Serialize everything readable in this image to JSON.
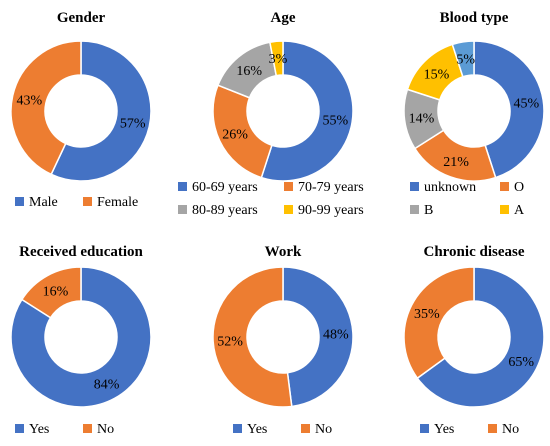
{
  "chart_data": [
    {
      "type": "pie",
      "title": "Gender",
      "donut": true,
      "series": [
        {
          "name": "Male",
          "value": 57,
          "label": "57%",
          "color": "#4472C4"
        },
        {
          "name": "Female",
          "value": 43,
          "label": "43%",
          "color": "#ED7D31"
        }
      ]
    },
    {
      "type": "pie",
      "title": "Age",
      "donut": true,
      "series": [
        {
          "name": "60-69 years",
          "value": 55,
          "label": "55%",
          "color": "#4472C4"
        },
        {
          "name": "70-79 years",
          "value": 26,
          "label": "26%",
          "color": "#ED7D31"
        },
        {
          "name": "80-89 years",
          "value": 16,
          "label": "16%",
          "color": "#A5A5A5"
        },
        {
          "name": "90-99 years",
          "value": 3,
          "label": "3%",
          "color": "#FFC000"
        }
      ]
    },
    {
      "type": "pie",
      "title": "Blood type",
      "donut": true,
      "series": [
        {
          "name": "unknown",
          "value": 45,
          "label": "45%",
          "color": "#4472C4"
        },
        {
          "name": "O",
          "value": 21,
          "label": "21%",
          "color": "#ED7D31"
        },
        {
          "name": "B",
          "value": 14,
          "label": "14%",
          "color": "#A5A5A5"
        },
        {
          "name": "A",
          "value": 15,
          "label": "15%",
          "color": "#FFC000"
        },
        {
          "name": "",
          "value": 5,
          "label": "5%",
          "color": "#5B9BD5"
        }
      ]
    },
    {
      "type": "pie",
      "title": "Received education",
      "donut": true,
      "series": [
        {
          "name": "Yes",
          "value": 84,
          "label": "84%",
          "color": "#4472C4"
        },
        {
          "name": "No",
          "value": 16,
          "label": "16%",
          "color": "#ED7D31"
        }
      ]
    },
    {
      "type": "pie",
      "title": "Work",
      "donut": true,
      "series": [
        {
          "name": "Yes",
          "value": 48,
          "label": "48%",
          "color": "#4472C4"
        },
        {
          "name": "No",
          "value": 52,
          "label": "52%",
          "color": "#ED7D31"
        }
      ]
    },
    {
      "type": "pie",
      "title": "Chronic disease",
      "donut": true,
      "series": [
        {
          "name": "Yes",
          "value": 65,
          "label": "65%",
          "color": "#4472C4"
        },
        {
          "name": "No",
          "value": 35,
          "label": "35%",
          "color": "#ED7D31"
        }
      ]
    }
  ]
}
